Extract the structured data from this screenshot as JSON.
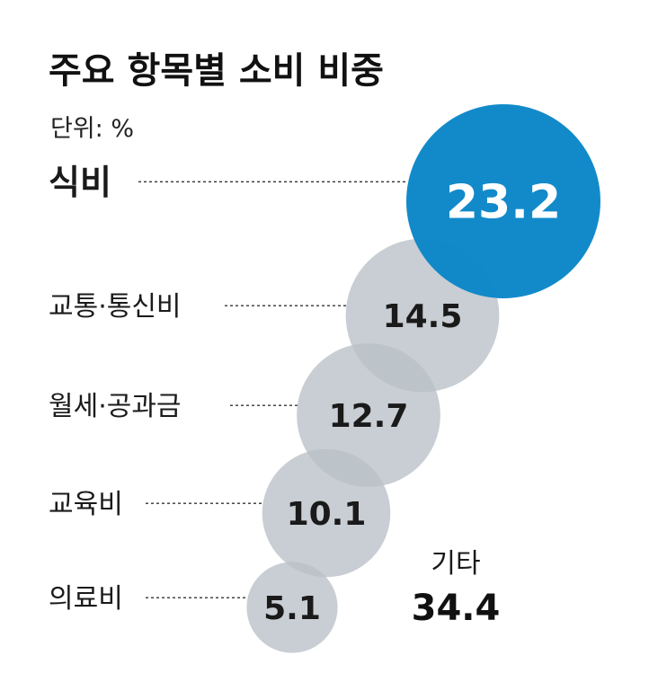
{
  "chart_data": {
    "type": "bubble",
    "title": "주요 항목별 소비 비중",
    "unit": "단위: %",
    "categories": [
      "식비",
      "교통·통신비",
      "월세·공과금",
      "교육비",
      "의료비"
    ],
    "values": [
      "23.2",
      "14.5",
      "12.7",
      "10.1",
      "5.1"
    ],
    "highlight_index": 0,
    "other": {
      "label": "기타",
      "value": "34.4"
    },
    "colors": {
      "highlight_bubble": "#0a86c8",
      "highlight_label": "#0a86c8",
      "bubble": "#b9c0c6",
      "bubble_opacity": "0.78"
    }
  }
}
